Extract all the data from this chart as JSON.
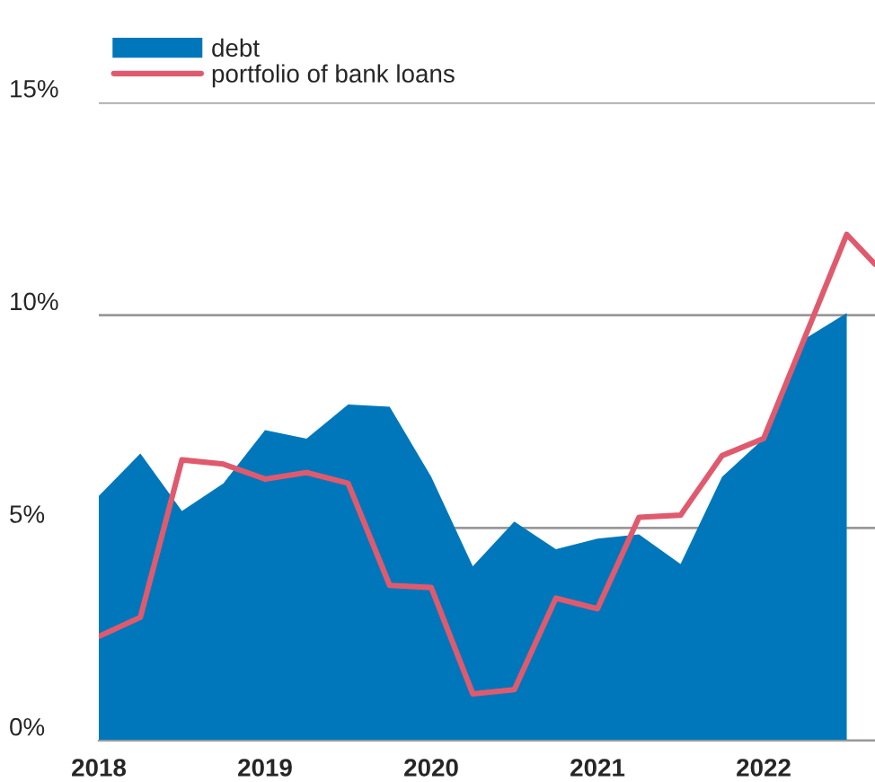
{
  "chart_data": {
    "type": "area",
    "x": [
      2018,
      2018.25,
      2018.5,
      2018.75,
      2019,
      2019.25,
      2019.5,
      2019.75,
      2020,
      2020.25,
      2020.5,
      2020.75,
      2021,
      2021.25,
      2021.5,
      2021.75,
      2022,
      2022.25,
      2022.5
    ],
    "series": [
      {
        "name": "debt",
        "color": "#0077bb",
        "values": [
          5.75,
          6.75,
          5.4,
          6.05,
          7.3,
          7.1,
          7.9,
          7.85,
          6.2,
          4.1,
          5.15,
          4.5,
          4.75,
          4.85,
          4.15,
          6.2,
          7.1,
          9.45,
          10.05
        ]
      },
      {
        "name": "portfolio of bank loans",
        "type": "line",
        "color": "#e05a6e",
        "x": [
          2018,
          2018.25,
          2018.5,
          2018.75,
          2019,
          2019.25,
          2019.5,
          2019.75,
          2020,
          2020.25,
          2020.5,
          2020.75,
          2021,
          2021.25,
          2021.5,
          2021.75,
          2022,
          2022.25,
          2022.5,
          2022.67
        ],
        "values": [
          2.45,
          2.9,
          6.6,
          6.5,
          6.15,
          6.3,
          6.05,
          3.65,
          3.6,
          1.1,
          1.2,
          3.35,
          3.1,
          5.25,
          5.3,
          6.7,
          7.1,
          9.5,
          11.9,
          11.2
        ]
      }
    ],
    "xlim": [
      2018,
      2022.67
    ],
    "xticks": [
      2018,
      2019,
      2020,
      2021,
      2022
    ],
    "ylim": [
      0,
      15
    ],
    "yticks": [
      {
        "value": 0,
        "label": "0%"
      },
      {
        "value": 5,
        "label": "5%"
      },
      {
        "value": 10,
        "label": "10%"
      },
      {
        "value": 15,
        "label": "15%"
      }
    ],
    "grid": "y",
    "legend": "top left"
  }
}
